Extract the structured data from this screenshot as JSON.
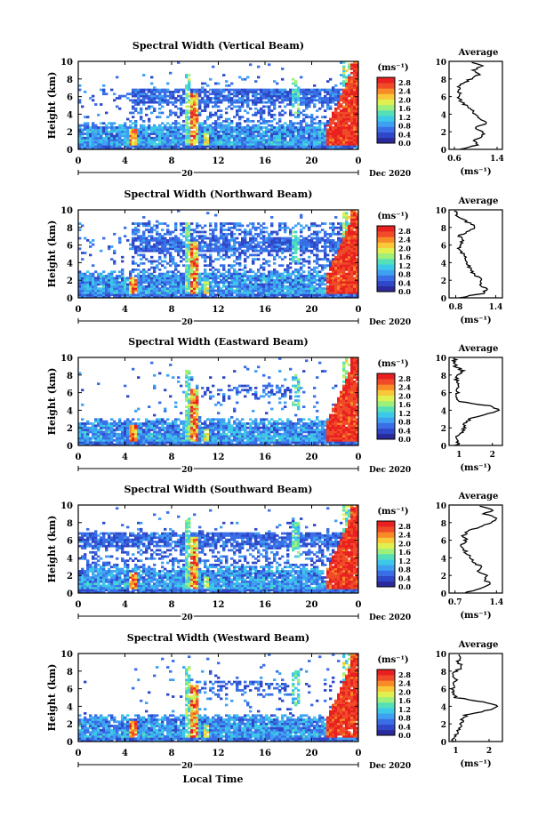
{
  "page": {
    "xlabel": "Local Time",
    "date_label": "Dec 2020",
    "day_label": "20",
    "colorbar_unit": "(ms⁻¹)",
    "profile_unit": "(ms⁻¹)",
    "profile_title": "Average",
    "ylabel": "Height (km)"
  },
  "colormap": [
    "#2a2a9a",
    "#2f48c8",
    "#3a6ee6",
    "#3fa0f2",
    "#3ec8e8",
    "#55e0b8",
    "#9ef07a",
    "#e0f050",
    "#f8c838",
    "#f88a28",
    "#f04a28",
    "#e82020"
  ],
  "chart_data": [
    {
      "type": "heatmap",
      "title": "Spectral Width (Vertical Beam)",
      "xlabel": "Local Time",
      "ylabel": "Height (km)",
      "x_ticks": [
        "0",
        "4",
        "8",
        "12",
        "16",
        "20",
        "0"
      ],
      "y_ticks": [
        "0",
        "2",
        "4",
        "6",
        "8",
        "10"
      ],
      "xlim": [
        0,
        24
      ],
      "ylim": [
        0,
        10
      ],
      "colorbar": {
        "min": 0.0,
        "max": 2.8,
        "ticks": [
          "2.8",
          "2.4",
          "2.0",
          "1.6",
          "1.2",
          "0.8",
          "0.4",
          "0.0"
        ]
      },
      "profile": {
        "title": "Average",
        "xlabel": "(ms⁻¹)",
        "x_ticks": [
          "0.6",
          "1.4"
        ],
        "xlim": [
          0.5,
          1.5
        ],
        "heights": [
          0,
          0.5,
          1,
          1.5,
          2,
          2.5,
          3,
          3.5,
          4,
          4.5,
          5,
          5.5,
          6,
          6.5,
          7,
          7.5,
          8,
          8.5,
          9,
          9.5,
          10
        ],
        "values": [
          0.72,
          1.05,
          0.95,
          1.15,
          1.1,
          1.0,
          1.2,
          1.05,
          1.0,
          0.9,
          0.82,
          0.72,
          0.68,
          0.7,
          0.68,
          0.75,
          0.9,
          1.05,
          0.95,
          1.15,
          0.8
        ]
      }
    },
    {
      "type": "heatmap",
      "title": "Spectral Width (Northward Beam)",
      "xlabel": "Local Time",
      "ylabel": "Height (km)",
      "x_ticks": [
        "0",
        "4",
        "8",
        "12",
        "16",
        "20",
        "0"
      ],
      "y_ticks": [
        "0",
        "2",
        "4",
        "6",
        "8",
        "10"
      ],
      "xlim": [
        0,
        24
      ],
      "ylim": [
        0,
        10
      ],
      "colorbar": {
        "min": 0.0,
        "max": 2.8,
        "ticks": [
          "2.8",
          "2.4",
          "2.0",
          "1.6",
          "1.2",
          "0.8",
          "0.4",
          "0.0"
        ]
      },
      "profile": {
        "title": "Average",
        "xlabel": "(ms⁻¹)",
        "x_ticks": [
          "0.8",
          "1.4"
        ],
        "xlim": [
          0.7,
          1.5
        ],
        "heights": [
          0,
          0.5,
          1,
          1.5,
          2,
          2.5,
          3,
          3.5,
          4,
          4.5,
          5,
          5.5,
          6,
          6.5,
          7,
          7.5,
          8,
          8.5,
          9,
          9.5,
          10
        ],
        "values": [
          0.85,
          1.2,
          1.25,
          1.15,
          1.2,
          1.1,
          1.05,
          1.0,
          0.98,
          0.95,
          0.9,
          0.85,
          0.88,
          0.9,
          0.85,
          0.95,
          1.1,
          1.0,
          0.88,
          0.8,
          0.78
        ]
      }
    },
    {
      "type": "heatmap",
      "title": "Spectral Width (Eastward Beam)",
      "xlabel": "Local Time",
      "ylabel": "Height (km)",
      "x_ticks": [
        "0",
        "4",
        "8",
        "12",
        "16",
        "20",
        "0"
      ],
      "y_ticks": [
        "0",
        "2",
        "4",
        "6",
        "8",
        "10"
      ],
      "xlim": [
        0,
        24
      ],
      "ylim": [
        0,
        10
      ],
      "colorbar": {
        "min": 0.0,
        "max": 2.8,
        "ticks": [
          "2.8",
          "2.4",
          "2.0",
          "1.6",
          "1.2",
          "0.8",
          "0.4",
          "0.0"
        ]
      },
      "profile": {
        "title": "Average",
        "xlabel": "(ms⁻¹)",
        "x_ticks": [
          "1",
          "2"
        ],
        "xlim": [
          0.7,
          2.3
        ],
        "heights": [
          0,
          0.5,
          1,
          1.5,
          2,
          2.5,
          3,
          3.5,
          4,
          4.5,
          5,
          5.5,
          6,
          6.5,
          7,
          7.5,
          8,
          8.5,
          9,
          9.5,
          10
        ],
        "values": [
          0.9,
          1.0,
          0.95,
          1.1,
          1.15,
          1.2,
          1.3,
          1.8,
          2.2,
          1.9,
          1.0,
          0.9,
          0.95,
          0.9,
          1.0,
          0.9,
          0.95,
          1.1,
          0.9,
          0.85,
          0.9
        ]
      }
    },
    {
      "type": "heatmap",
      "title": "Spectral Width (Southward Beam)",
      "xlabel": "Local Time",
      "ylabel": "Height (km)",
      "x_ticks": [
        "0",
        "4",
        "8",
        "12",
        "16",
        "20",
        "0"
      ],
      "y_ticks": [
        "0",
        "2",
        "4",
        "6",
        "8",
        "10"
      ],
      "xlim": [
        0,
        24
      ],
      "ylim": [
        0,
        10
      ],
      "colorbar": {
        "min": 0.0,
        "max": 2.8,
        "ticks": [
          "2.8",
          "2.4",
          "2.0",
          "1.6",
          "1.2",
          "0.8",
          "0.4",
          "0.0"
        ]
      },
      "profile": {
        "title": "Average",
        "xlabel": "(ms⁻¹)",
        "x_ticks": [
          "0.7",
          "1.4"
        ],
        "xlim": [
          0.6,
          1.5
        ],
        "heights": [
          0,
          0.5,
          1,
          1.5,
          2,
          2.5,
          3,
          3.5,
          4,
          4.5,
          5,
          5.5,
          6,
          6.5,
          7,
          7.5,
          8,
          8.5,
          9,
          9.5,
          10
        ],
        "values": [
          0.85,
          1.15,
          1.3,
          1.2,
          1.25,
          1.1,
          1.15,
          1.0,
          0.95,
          0.9,
          0.85,
          0.8,
          0.88,
          0.85,
          0.9,
          1.1,
          1.3,
          1.4,
          1.2,
          1.35,
          1.05
        ]
      }
    },
    {
      "type": "heatmap",
      "title": "Spectral Width (Westward Beam)",
      "xlabel": "Local Time",
      "ylabel": "Height (km)",
      "x_ticks": [
        "0",
        "4",
        "8",
        "12",
        "16",
        "20",
        "0"
      ],
      "y_ticks": [
        "0",
        "2",
        "4",
        "6",
        "8",
        "10"
      ],
      "xlim": [
        0,
        24
      ],
      "ylim": [
        0,
        10
      ],
      "colorbar": {
        "min": 0.0,
        "max": 2.8,
        "ticks": [
          "2.8",
          "2.4",
          "2.0",
          "1.6",
          "1.2",
          "0.8",
          "0.4",
          "0.0"
        ]
      },
      "profile": {
        "title": "Average",
        "xlabel": "(ms⁻¹)",
        "x_ticks": [
          "1",
          "2"
        ],
        "xlim": [
          0.8,
          2.4
        ],
        "heights": [
          0,
          0.5,
          1,
          1.5,
          2,
          2.5,
          3,
          3.5,
          4,
          4.5,
          5,
          5.5,
          6,
          6.5,
          7,
          7.5,
          8,
          8.5,
          9,
          9.5,
          10
        ],
        "values": [
          0.9,
          1.0,
          1.05,
          1.1,
          1.15,
          1.2,
          1.3,
          1.9,
          2.3,
          1.8,
          1.0,
          0.95,
          0.9,
          0.95,
          1.0,
          0.9,
          1.0,
          1.2,
          1.05,
          1.15,
          1.0
        ]
      }
    }
  ]
}
